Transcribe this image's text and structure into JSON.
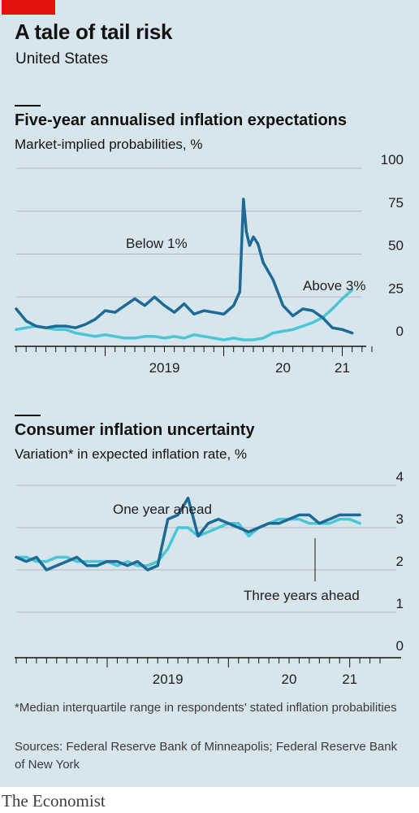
{
  "header": {
    "title": "A tale of tail risk",
    "subtitle": "United States"
  },
  "chart_data": [
    {
      "type": "line",
      "title": "Five-year annualised inflation expectations",
      "subtitle": "Market-implied probabilities, %",
      "ylim": [
        0,
        100
      ],
      "y_ticks": [
        "0",
        "25",
        "50",
        "75",
        "100"
      ],
      "x_tick_labels": [
        "2019",
        "20",
        "21"
      ],
      "grid": true,
      "series": [
        {
          "name": "Below 1%",
          "color": "#1d6a96",
          "x": [
            "2018-04",
            "2018-05",
            "2018-06",
            "2018-07",
            "2018-08",
            "2018-09",
            "2018-10",
            "2018-11",
            "2018-12",
            "2019-01",
            "2019-02",
            "2019-03",
            "2019-04",
            "2019-05",
            "2019-06",
            "2019-07",
            "2019-08",
            "2019-09",
            "2019-10",
            "2019-11",
            "2019-12",
            "2020-01",
            "2020-02",
            "2020-02-20",
            "2020-03",
            "2020-03-10",
            "2020-03-20",
            "2020-04",
            "2020-04-15",
            "2020-05",
            "2020-06",
            "2020-07",
            "2020-08",
            "2020-09",
            "2020-10",
            "2020-11",
            "2020-12",
            "2021-01",
            "2021-02"
          ],
          "values": [
            18,
            11,
            8,
            7,
            8,
            8,
            7,
            9,
            12,
            17,
            16,
            20,
            24,
            20,
            25,
            20,
            16,
            21,
            15,
            17,
            16,
            15,
            20,
            28,
            82,
            63,
            55,
            60,
            56,
            45,
            35,
            20,
            14,
            18,
            17,
            13,
            7,
            6,
            4
          ]
        },
        {
          "name": "Above 3%",
          "color": "#4ac6d6",
          "x": [
            "2018-04",
            "2018-05",
            "2018-06",
            "2018-07",
            "2018-08",
            "2018-09",
            "2018-10",
            "2018-11",
            "2018-12",
            "2019-01",
            "2019-02",
            "2019-03",
            "2019-04",
            "2019-05",
            "2019-06",
            "2019-07",
            "2019-08",
            "2019-09",
            "2019-10",
            "2019-11",
            "2019-12",
            "2020-01",
            "2020-02",
            "2020-03",
            "2020-04",
            "2020-05",
            "2020-06",
            "2020-07",
            "2020-08",
            "2020-09",
            "2020-10",
            "2020-11",
            "2020-12",
            "2021-01",
            "2021-02"
          ],
          "values": [
            6,
            7,
            8,
            7,
            6,
            6,
            4,
            3,
            2,
            3,
            2,
            1,
            1,
            2,
            2,
            1,
            2,
            1,
            3,
            2,
            1,
            0,
            1,
            0,
            0,
            1,
            4,
            5,
            6,
            8,
            10,
            13,
            18,
            24,
            29
          ]
        }
      ]
    },
    {
      "type": "line",
      "title": "Consumer inflation uncertainty",
      "subtitle": "Variation* in expected inflation rate, %",
      "ylim": [
        0,
        4
      ],
      "y_ticks": [
        "0",
        "1",
        "2",
        "3",
        "4"
      ],
      "x_tick_labels": [
        "2019",
        "20",
        "21"
      ],
      "grid": true,
      "series": [
        {
          "name": "One year ahead",
          "color": "#1d6a96",
          "x": [
            "2018-04",
            "2018-05",
            "2018-06",
            "2018-07",
            "2018-08",
            "2018-09",
            "2018-10",
            "2018-11",
            "2018-12",
            "2019-01",
            "2019-02",
            "2019-03",
            "2019-04",
            "2019-05",
            "2019-06",
            "2019-07",
            "2019-08",
            "2019-09",
            "2019-10",
            "2019-11",
            "2019-12",
            "2020-01",
            "2020-02",
            "2020-03",
            "2020-04",
            "2020-05",
            "2020-06",
            "2020-07",
            "2020-08",
            "2020-09",
            "2020-10",
            "2020-11",
            "2020-12",
            "2021-01",
            "2021-02"
          ],
          "values": [
            2.3,
            2.2,
            2.3,
            2.0,
            2.1,
            2.2,
            2.3,
            2.1,
            2.1,
            2.2,
            2.2,
            2.1,
            2.2,
            2.0,
            2.1,
            3.2,
            3.3,
            3.7,
            2.8,
            3.1,
            3.2,
            3.1,
            3.0,
            2.9,
            3.0,
            3.1,
            3.1,
            3.2,
            3.3,
            3.3,
            3.1,
            3.2,
            3.3,
            3.3,
            3.3
          ]
        },
        {
          "name": "Three years ahead",
          "color": "#4ac6d6",
          "x": [
            "2018-04",
            "2018-05",
            "2018-06",
            "2018-07",
            "2018-08",
            "2018-09",
            "2018-10",
            "2018-11",
            "2018-12",
            "2019-01",
            "2019-02",
            "2019-03",
            "2019-04",
            "2019-05",
            "2019-06",
            "2019-07",
            "2019-08",
            "2019-09",
            "2019-10",
            "2019-11",
            "2019-12",
            "2020-01",
            "2020-02",
            "2020-03",
            "2020-04",
            "2020-05",
            "2020-06",
            "2020-07",
            "2020-08",
            "2020-09",
            "2020-10",
            "2020-11",
            "2020-12",
            "2021-01",
            "2021-02"
          ],
          "values": [
            2.3,
            2.3,
            2.2,
            2.2,
            2.3,
            2.3,
            2.2,
            2.2,
            2.2,
            2.2,
            2.1,
            2.2,
            2.1,
            2.1,
            2.2,
            2.5,
            3.0,
            3.0,
            2.8,
            2.9,
            3.0,
            3.1,
            3.1,
            2.8,
            3.0,
            3.1,
            3.2,
            3.2,
            3.2,
            3.1,
            3.1,
            3.1,
            3.2,
            3.2,
            3.1
          ]
        }
      ]
    }
  ],
  "notes": {
    "footnote": "*Median interquartile range in respondents’ stated inflation probabilities",
    "sources": "Sources: Federal Reserve Bank of Minneapolis; Federal Reserve Bank of New York"
  },
  "brand": "The Economist"
}
